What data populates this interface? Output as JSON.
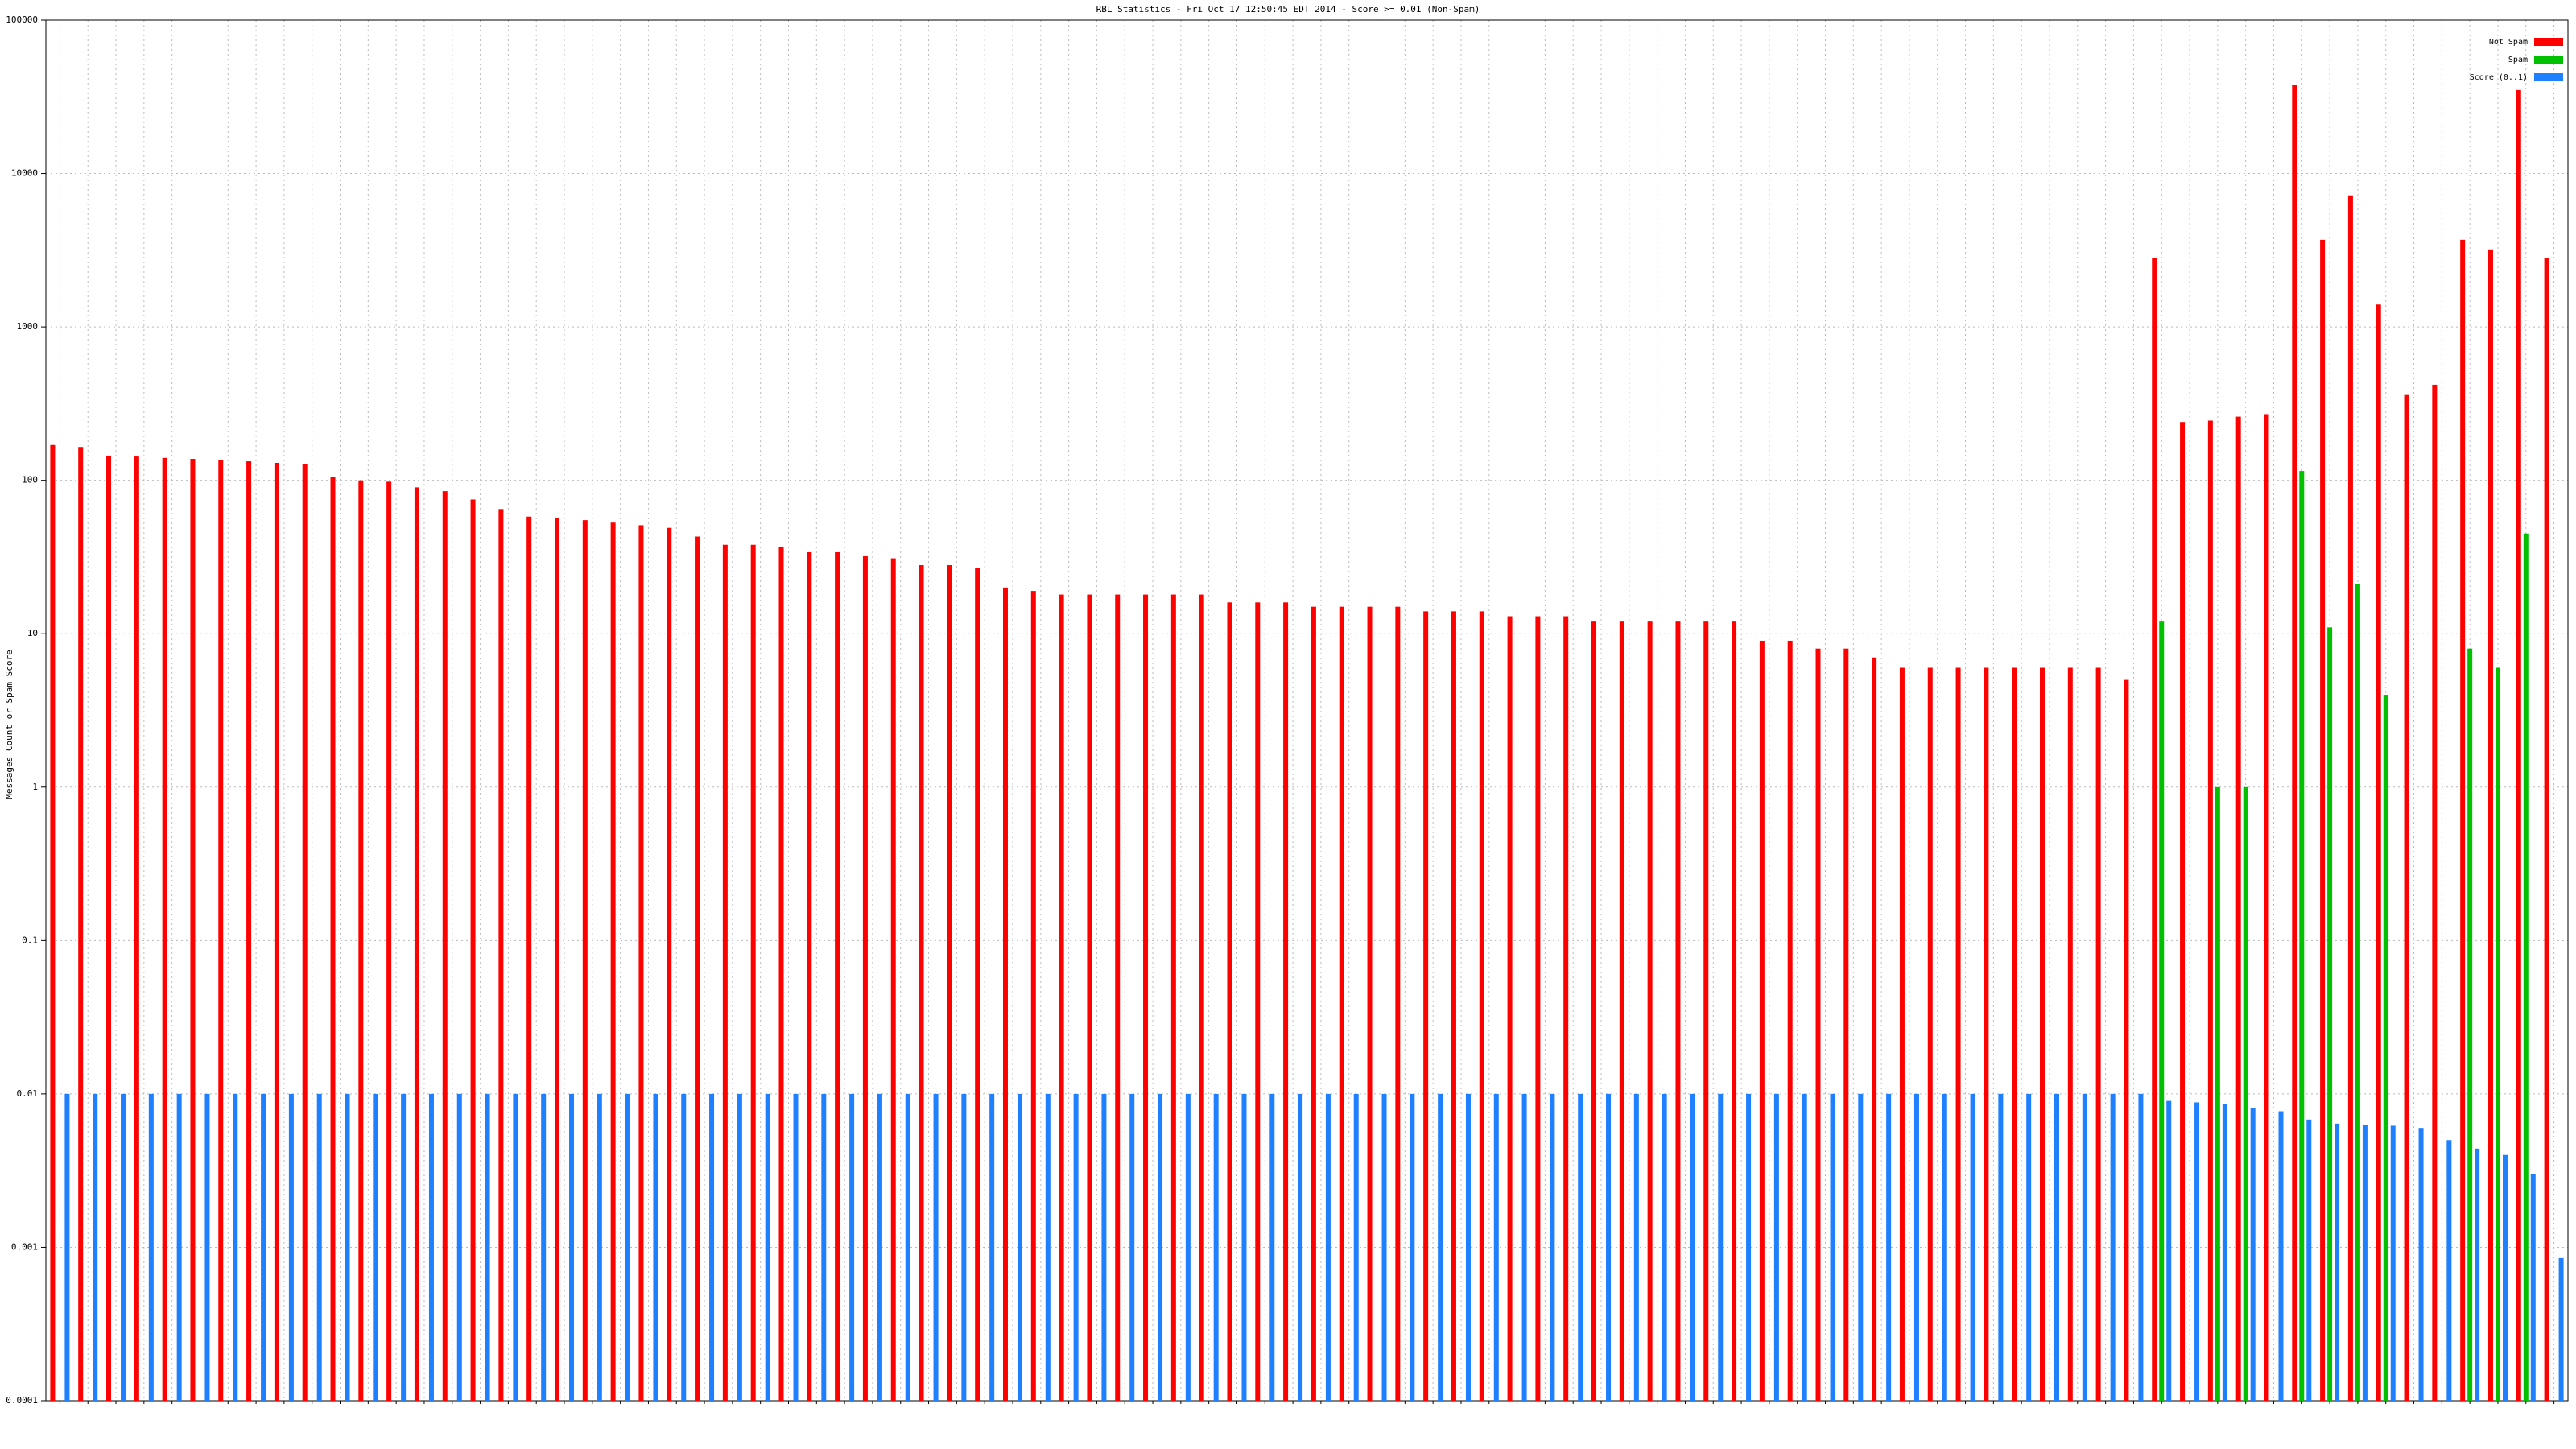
{
  "chart_data": {
    "type": "bar",
    "title": "RBL Statistics - Fri Oct 17 12:50:45 EDT 2014 - Score >= 0.01 (Non-Spam)",
    "y_label": "Messages Count or Spam Score",
    "log_scale": true,
    "grid": true,
    "legend": "top-right",
    "ylim": [
      0.0001,
      100000
    ],
    "yticks": [
      0.0001,
      0.001,
      0.01,
      0.1,
      1,
      10,
      100,
      1000,
      10000,
      100000
    ],
    "categories": [
      null,
      null,
      null,
      null,
      null,
      null,
      null,
      null,
      null,
      null,
      null,
      null,
      null,
      null,
      null,
      null,
      null,
      null,
      null,
      null,
      null,
      null,
      null,
      null,
      null,
      null,
      null,
      null,
      null,
      null,
      null,
      null,
      null,
      null,
      null,
      null,
      null,
      null,
      null,
      null,
      null,
      null,
      null,
      null,
      null,
      null,
      null,
      null,
      null,
      null,
      null,
      null,
      null,
      null,
      null,
      null,
      null,
      null,
      null,
      null,
      null,
      null,
      null,
      null,
      null,
      null,
      null,
      null,
      null,
      null,
      null,
      null,
      null,
      null,
      null,
      null,
      null,
      null,
      null,
      null,
      null,
      null,
      null,
      null,
      null,
      null,
      null,
      null,
      null,
      null
    ],
    "series": [
      {
        "name": "Not Spam",
        "color": "#ff0000",
        "values": [
          170,
          165,
          145,
          143,
          140,
          138,
          135,
          133,
          130,
          128,
          105,
          100,
          98,
          90,
          85,
          75,
          65,
          58,
          57,
          55,
          53,
          51,
          49,
          43,
          38,
          38,
          37,
          34,
          34,
          32,
          31,
          28,
          28,
          27,
          20,
          19,
          18,
          18,
          18,
          18,
          18,
          18,
          16,
          16,
          16,
          15,
          15,
          15,
          15,
          14,
          14,
          14,
          13,
          13,
          13,
          12,
          12,
          12,
          12,
          12,
          12,
          9,
          9,
          8,
          8,
          7,
          6,
          6,
          6,
          6,
          6,
          6,
          6,
          6,
          5,
          2800,
          240,
          245,
          260,
          270,
          38000,
          3700,
          7200,
          1400,
          360,
          420,
          3700,
          3200,
          35000,
          2800
        ]
      },
      {
        "name": "Spam",
        "color": "#00c000",
        "values": [
          null,
          null,
          null,
          null,
          null,
          null,
          null,
          null,
          null,
          null,
          null,
          null,
          null,
          null,
          null,
          null,
          null,
          null,
          null,
          null,
          null,
          null,
          null,
          null,
          null,
          null,
          null,
          null,
          null,
          null,
          null,
          null,
          null,
          null,
          null,
          null,
          null,
          null,
          null,
          null,
          null,
          null,
          null,
          null,
          null,
          null,
          null,
          null,
          null,
          null,
          null,
          null,
          null,
          null,
          null,
          null,
          null,
          null,
          null,
          null,
          null,
          null,
          null,
          null,
          null,
          null,
          null,
          null,
          null,
          null,
          null,
          null,
          null,
          null,
          null,
          12,
          null,
          1,
          1,
          null,
          115,
          11,
          21,
          4,
          null,
          null,
          8,
          6,
          45,
          null
        ]
      },
      {
        "name": "Score (0..1)",
        "color": "#1e7fff",
        "values": [
          0.01,
          0.01,
          0.01,
          0.01,
          0.01,
          0.01,
          0.01,
          0.01,
          0.01,
          0.01,
          0.01,
          0.01,
          0.01,
          0.01,
          0.01,
          0.01,
          0.01,
          0.01,
          0.01,
          0.01,
          0.01,
          0.01,
          0.01,
          0.01,
          0.01,
          0.01,
          0.01,
          0.01,
          0.01,
          0.01,
          0.01,
          0.01,
          0.01,
          0.01,
          0.01,
          0.01,
          0.01,
          0.01,
          0.01,
          0.01,
          0.01,
          0.01,
          0.01,
          0.01,
          0.01,
          0.01,
          0.01,
          0.01,
          0.01,
          0.01,
          0.01,
          0.01,
          0.01,
          0.01,
          0.01,
          0.01,
          0.01,
          0.01,
          0.01,
          0.01,
          0.01,
          0.01,
          0.01,
          0.01,
          0.01,
          0.01,
          0.01,
          0.01,
          0.01,
          0.01,
          0.01,
          0.01,
          0.01,
          0.01,
          0.01,
          0.009,
          0.0088,
          0.0086,
          0.0081,
          0.0077,
          0.0068,
          0.0064,
          0.0063,
          0.0062,
          0.006,
          0.005,
          0.0044,
          0.004,
          0.003,
          0.00085
        ]
      }
    ]
  }
}
